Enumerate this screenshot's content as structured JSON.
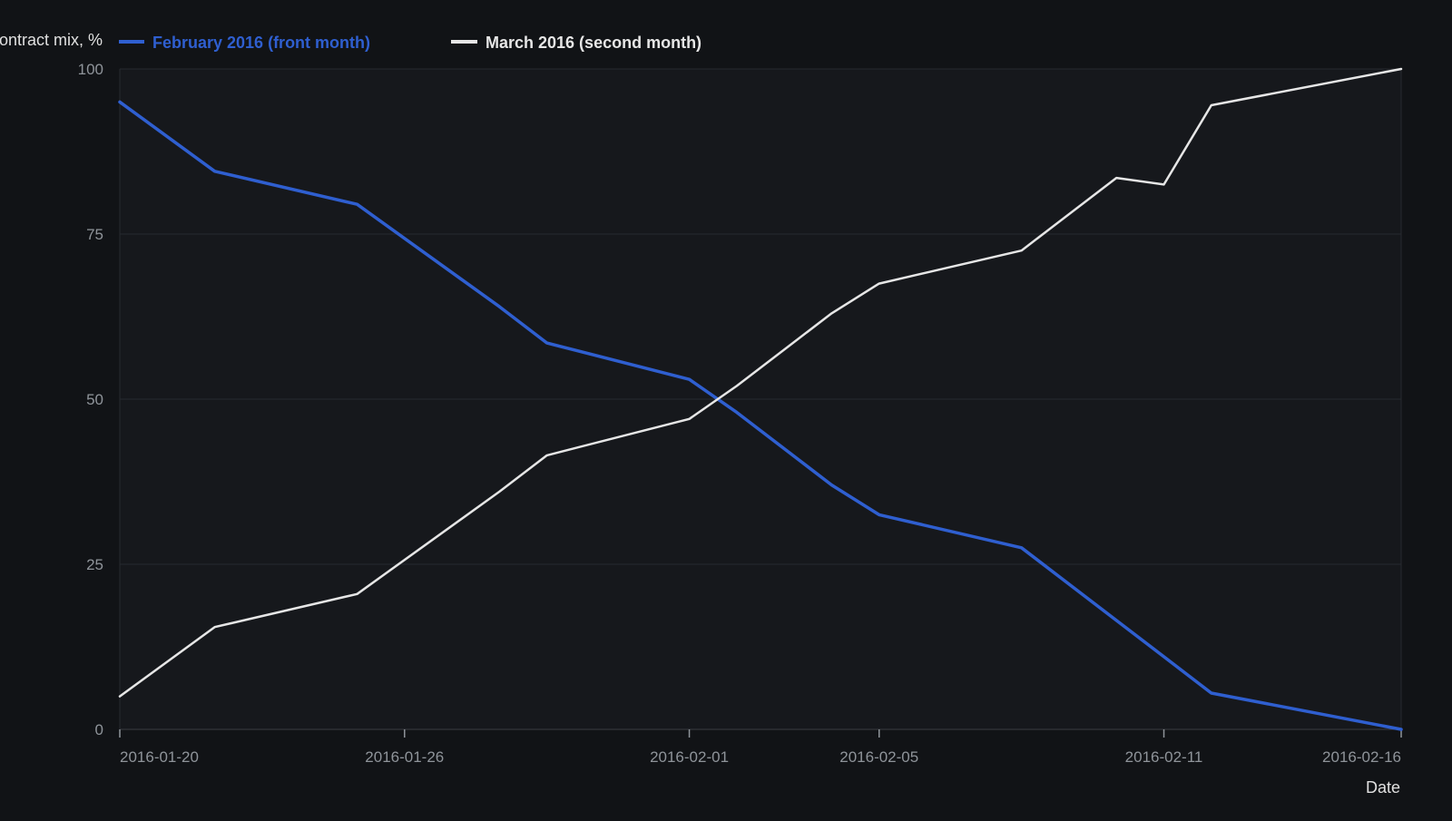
{
  "chart_data": {
    "type": "line",
    "title": "",
    "ylabel": "ontract mix, %",
    "xlabel": "Date",
    "ylim": [
      0,
      100
    ],
    "xlim": [
      "2016-01-20",
      "2016-02-16"
    ],
    "y_ticks": [
      0,
      25,
      50,
      75,
      100
    ],
    "x_ticks": [
      "2016-01-20",
      "2016-01-26",
      "2016-02-01",
      "2016-02-05",
      "2016-02-11",
      "2016-02-16"
    ],
    "grid": "horizontal",
    "legend_position": "top-left",
    "x": [
      "2016-01-20",
      "2016-01-22",
      "2016-01-25",
      "2016-01-28",
      "2016-01-29",
      "2016-02-01",
      "2016-02-02",
      "2016-02-04",
      "2016-02-05",
      "2016-02-08",
      "2016-02-10",
      "2016-02-11",
      "2016-02-12",
      "2016-02-16"
    ],
    "series": [
      {
        "name": "February 2016 (front month)",
        "color": "#2f5fd0",
        "values": [
          95,
          84.5,
          79.5,
          64,
          58.5,
          53,
          48,
          37,
          32.5,
          27.5,
          16.5,
          11,
          5.5,
          0
        ]
      },
      {
        "name": "March 2016 (second month)",
        "color": "#e6e6e6",
        "values": [
          5,
          15.5,
          20.5,
          36,
          41.5,
          47,
          52,
          63,
          67.5,
          72.5,
          83.5,
          82.5,
          94.5,
          100
        ]
      }
    ]
  }
}
